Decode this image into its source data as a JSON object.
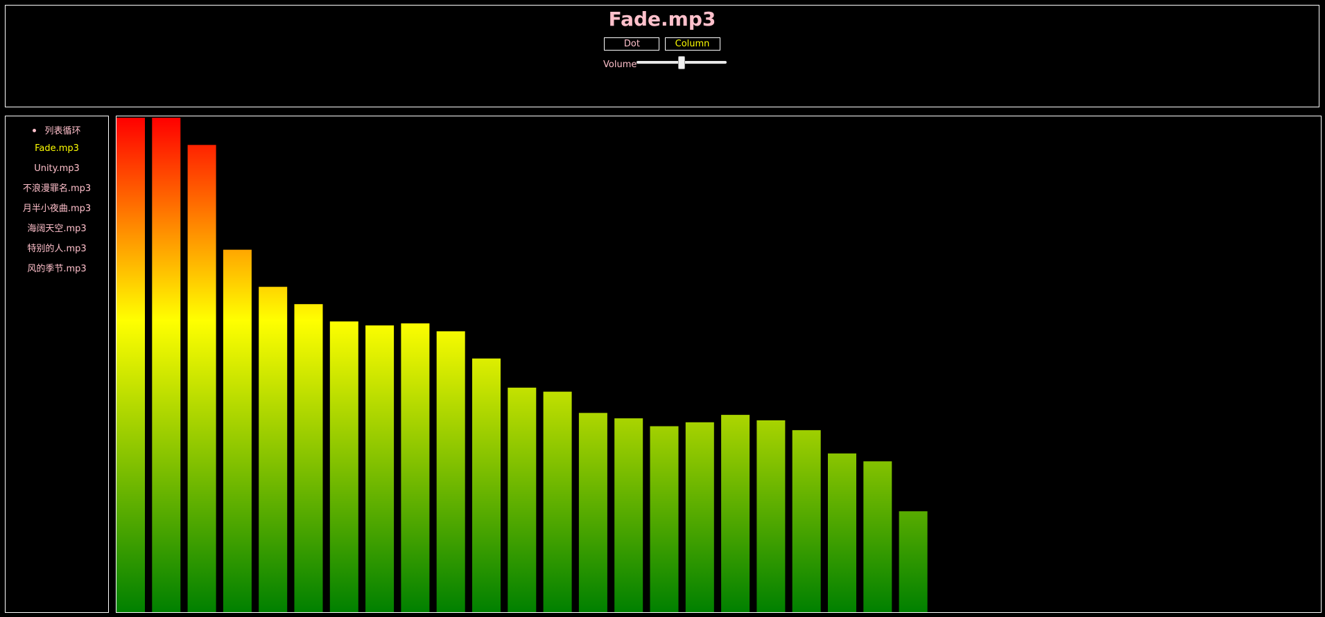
{
  "header": {
    "title": "Fade.mp3",
    "modes": {
      "dot_label": "Dot",
      "column_label": "Column",
      "selected": "Column"
    },
    "volume": {
      "label": "Volume",
      "level": 0.5
    }
  },
  "sidebar": {
    "play_mode": "列表循环",
    "tracks": [
      "Fade.mp3",
      "Unity.mp3",
      "不浪漫罪名.mp3",
      "月半小夜曲.mp3",
      "海阔天空.mp3",
      "特别的人.mp3",
      "风的季节.mp3"
    ],
    "active_track": "Fade.mp3"
  },
  "colors": {
    "background": "#000000",
    "border": "#ffffff",
    "text": "#ffc0cb",
    "highlight": "#ffff00",
    "gradient_top": "#ff0000",
    "gradient_mid": "#ffff00",
    "gradient_bottom": "#008000"
  },
  "chart_data": {
    "type": "bar",
    "values": [
      1.0,
      1.0,
      0.945,
      0.733,
      0.658,
      0.623,
      0.588,
      0.58,
      0.584,
      0.568,
      0.513,
      0.454,
      0.446,
      0.403,
      0.392,
      0.376,
      0.384,
      0.399,
      0.388,
      0.368,
      0.321,
      0.305,
      0.204
    ],
    "ylim": [
      0,
      1
    ]
  }
}
